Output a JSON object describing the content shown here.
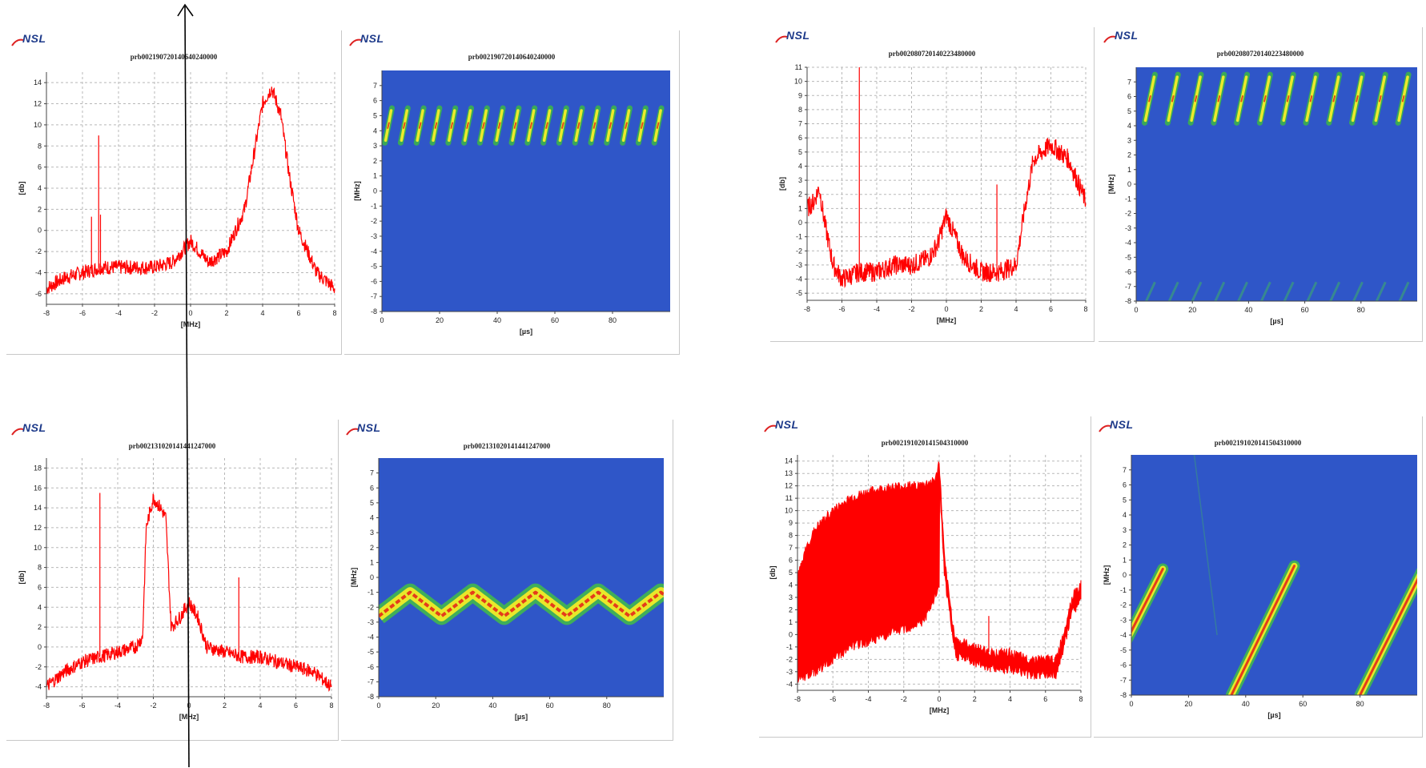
{
  "logo_text": "NSL",
  "colors": {
    "signal": "#ff0000",
    "background_field": "#2f56c8",
    "grid": "#b8b8b8",
    "logo": "#1d3a8a"
  },
  "chart_data": [
    {
      "type": "line",
      "title": "prb002190720140640240000",
      "xlabel": "[MHz]",
      "ylabel": "[db]",
      "xlim": [
        -8,
        8
      ],
      "ylim": [
        -7,
        15
      ],
      "xticks": [
        -8,
        -6,
        -4,
        -2,
        0,
        2,
        4,
        6,
        8
      ],
      "yticks": [
        -6,
        -4,
        -2,
        0,
        2,
        4,
        6,
        8,
        10,
        12,
        14
      ],
      "x": [
        -8,
        -7,
        -6,
        -5,
        -4,
        -3,
        -2,
        -1,
        -0.5,
        0,
        0.5,
        1,
        2,
        3,
        3.5,
        4,
        4.5,
        5,
        5.5,
        6,
        7,
        8
      ],
      "y": [
        -5.5,
        -4.5,
        -4,
        -3.5,
        -3.5,
        -3.5,
        -3.5,
        -3,
        -2,
        -1,
        -2,
        -3,
        -2,
        2,
        7,
        12,
        13.5,
        11,
        5,
        0,
        -4,
        -5.5
      ],
      "spikes": [
        {
          "x": -5.1,
          "y": 9
        },
        {
          "x": -5.5,
          "y": 1.3
        },
        {
          "x": -5.0,
          "y": 1.5
        }
      ],
      "grid": true
    },
    {
      "type": "heatmap",
      "title": "prb002190720140640240000",
      "xlabel": "[µs]",
      "ylabel": "[MHz]",
      "xlim": [
        0,
        100
      ],
      "ylim": [
        -8,
        8
      ],
      "xticks": [
        0,
        20,
        40,
        60,
        80
      ],
      "yticks": [
        -8,
        -7,
        -6,
        -5,
        -4,
        -3,
        -2,
        -1,
        0,
        1,
        2,
        3,
        4,
        5,
        6,
        7
      ],
      "pattern": "chirps",
      "period_us": 5.5,
      "freq_low": 3.2,
      "freq_high": 5.5,
      "start_us": 1,
      "grid": false
    },
    {
      "type": "line",
      "title": "prb002080720140223480000",
      "xlabel": "[MHz]",
      "ylabel": "[db]",
      "xlim": [
        -8,
        8
      ],
      "ylim": [
        -5.5,
        11
      ],
      "xticks": [
        -8,
        -6,
        -4,
        -2,
        0,
        2,
        4,
        6,
        8
      ],
      "yticks": [
        -5,
        -4,
        -3,
        -2,
        -1,
        0,
        1,
        2,
        3,
        4,
        5,
        6,
        7,
        8,
        9,
        10,
        11
      ],
      "x": [
        -8,
        -7.6,
        -7.3,
        -7,
        -6.5,
        -6,
        -5,
        -4,
        -3,
        -2,
        -1,
        -0.5,
        0,
        0.5,
        1,
        2,
        3,
        4,
        4.5,
        5,
        6,
        7,
        7.5,
        8
      ],
      "y": [
        1,
        1.5,
        2.5,
        0,
        -3,
        -4,
        -3.5,
        -3.5,
        -3,
        -3,
        -2.5,
        -1.5,
        0.5,
        -1,
        -2.5,
        -3.5,
        -3.5,
        -3,
        1,
        4.5,
        5.5,
        4.5,
        3,
        1.5
      ],
      "spikes": [
        {
          "x": -5,
          "y": 11
        },
        {
          "x": 2.9,
          "y": 2.7
        }
      ],
      "grid": true
    },
    {
      "type": "heatmap",
      "title": "prb002080720140223480000",
      "xlabel": "[µs]",
      "ylabel": "[MHz]",
      "xlim": [
        0,
        100
      ],
      "ylim": [
        -8,
        8
      ],
      "xticks": [
        0,
        20,
        40,
        60,
        80
      ],
      "yticks": [
        -8,
        -7,
        -6,
        -5,
        -4,
        -3,
        -2,
        -1,
        0,
        1,
        2,
        3,
        4,
        5,
        6,
        7
      ],
      "pattern": "chirps_with_faint_bottom",
      "period_us": 8.2,
      "freq_low": 4.2,
      "freq_high": 7.5,
      "start_us": 3,
      "grid": false
    },
    {
      "type": "line",
      "title": "prb002131020141441247000",
      "xlabel": "[MHz]",
      "ylabel": "[db]",
      "xlim": [
        -8,
        8
      ],
      "ylim": [
        -5,
        19
      ],
      "xticks": [
        -8,
        -6,
        -4,
        -2,
        0,
        2,
        4,
        6,
        8
      ],
      "yticks": [
        -4,
        -2,
        0,
        2,
        4,
        6,
        8,
        10,
        12,
        14,
        16,
        18
      ],
      "x": [
        -8,
        -7,
        -6,
        -5,
        -4,
        -3,
        -2.6,
        -2.4,
        -2,
        -1.6,
        -1.3,
        -1,
        -0.5,
        0,
        0.5,
        1,
        2,
        3,
        4,
        5,
        6,
        7,
        8
      ],
      "y": [
        -4,
        -2.5,
        -1.5,
        -1,
        -0.5,
        0,
        1,
        12,
        15,
        14,
        13,
        2,
        3,
        4.5,
        3,
        0,
        -0.5,
        -1,
        -1,
        -1.5,
        -2,
        -2.5,
        -4
      ],
      "spikes": [
        {
          "x": -5,
          "y": 15.5
        },
        {
          "x": 2.8,
          "y": 7
        }
      ],
      "grid": true
    },
    {
      "type": "heatmap",
      "title": "prb002131020141441247000",
      "xlabel": "[µs]",
      "ylabel": "[MHz]",
      "xlim": [
        0,
        100
      ],
      "ylim": [
        -8,
        8
      ],
      "xticks": [
        0,
        20,
        40,
        60,
        80
      ],
      "yticks": [
        -8,
        -7,
        -6,
        -5,
        -4,
        -3,
        -2,
        -1,
        0,
        1,
        2,
        3,
        4,
        5,
        6,
        7
      ],
      "pattern": "triangle_wave",
      "period_us": 22,
      "freq_low": -2.6,
      "freq_high": -1.0,
      "grid": false
    },
    {
      "type": "area",
      "title": "prb002191020141504310000",
      "xlabel": "[MHz]",
      "ylabel": "[db]",
      "xlim": [
        -8,
        8
      ],
      "ylim": [
        -4.5,
        14.5
      ],
      "xticks": [
        -8,
        -6,
        -4,
        -2,
        0,
        2,
        4,
        6,
        8
      ],
      "yticks": [
        -4,
        -3,
        -2,
        -1,
        0,
        1,
        2,
        3,
        4,
        5,
        6,
        7,
        8,
        9,
        10,
        11,
        12,
        13,
        14
      ],
      "x_upper": [
        -8,
        -7.5,
        -7,
        -6,
        -5,
        -4,
        -3,
        -2,
        -1,
        -0.2,
        0,
        0.3,
        0.8,
        1,
        2,
        3,
        4,
        5,
        6,
        6.6,
        7,
        7.5,
        8
      ],
      "y_upper": [
        4.5,
        7,
        8.5,
        10,
        11,
        11.5,
        11.8,
        12,
        12,
        12.5,
        14,
        6,
        0.5,
        -0.5,
        -1,
        -1.5,
        -1.5,
        -2,
        -2,
        -2,
        0,
        3,
        4
      ],
      "x_lower": [
        -8,
        -7,
        -6,
        -5,
        -4,
        -3,
        -2,
        -1,
        -0.5,
        0
      ],
      "y_lower": [
        -3.5,
        -3,
        -2,
        -1,
        -0.5,
        0,
        0.5,
        1,
        2,
        4
      ],
      "spikes": [
        {
          "x": 2.8,
          "y": 1.5
        }
      ],
      "grid": true
    },
    {
      "type": "heatmap",
      "title": "prb002191020141504310000",
      "xlabel": "[µs]",
      "ylabel": "[MHz]",
      "xlim": [
        0,
        100
      ],
      "ylim": [
        -8,
        8
      ],
      "xticks": [
        0,
        20,
        40,
        60,
        80
      ],
      "yticks": [
        -8,
        -7,
        -6,
        -5,
        -4,
        -3,
        -2,
        -1,
        0,
        1,
        2,
        3,
        4,
        5,
        6,
        7
      ],
      "pattern": "long_chirps",
      "segments": [
        {
          "x0": -2,
          "y0": -4.5,
          "x1": 11,
          "y1": 0.4
        },
        {
          "x0": 35,
          "y0": -8,
          "x1": 57,
          "y1": 0.6
        },
        {
          "x0": 80,
          "y0": -8,
          "x1": 102,
          "y1": 0.4
        }
      ],
      "grid": false
    }
  ]
}
